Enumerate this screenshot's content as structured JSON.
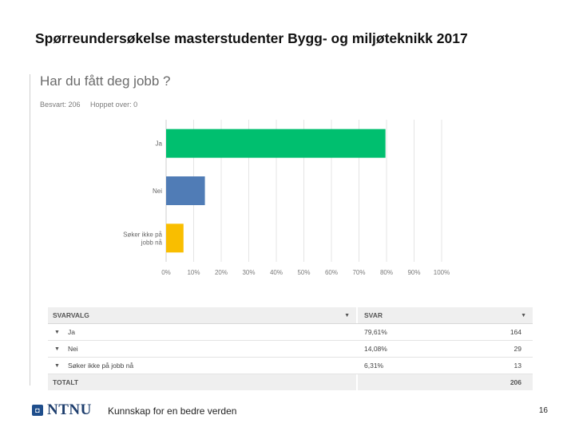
{
  "slide_title": "Spørreundersøkelse masterstudenter Bygg- og miljøteknikk 2017",
  "question": "Har du fått deg jobb ?",
  "stats": {
    "answered": "Besvart: 206",
    "skipped": "Hoppet over: 0"
  },
  "chart_data": {
    "type": "bar",
    "orientation": "horizontal",
    "categories": [
      "Ja",
      "Nei",
      "Søker ikke på jobb nå"
    ],
    "category_lines": [
      [
        "Ja"
      ],
      [
        "Nei"
      ],
      [
        "Søker ikke på",
        "jobb nå"
      ]
    ],
    "values": [
      79.61,
      14.08,
      6.31
    ],
    "colors": [
      "#00bf6f",
      "#507cb6",
      "#f9be00"
    ],
    "xlim": [
      0,
      100
    ],
    "xticks": [
      "0%",
      "10%",
      "20%",
      "30%",
      "40%",
      "50%",
      "60%",
      "70%",
      "80%",
      "90%",
      "100%"
    ],
    "grid": true
  },
  "table": {
    "headers": {
      "choice": "SVARVALG",
      "answer": "SVAR"
    },
    "rows": [
      {
        "label": "Ja",
        "percent": "79,61%",
        "count": "164"
      },
      {
        "label": "Nei",
        "percent": "14,08%",
        "count": "29"
      },
      {
        "label": "Søker ikke på jobb nå",
        "percent": "6,31%",
        "count": "13"
      }
    ],
    "total_label": "TOTALT",
    "total_count": "206"
  },
  "footer": {
    "logo_text": "NTNU",
    "tagline": "Kunnskap for en bedre verden",
    "page_number": "16"
  },
  "icons": {
    "logo": "ntnu-logo-icon",
    "sort": "sort-caret-icon",
    "expand": "expand-caret-icon"
  }
}
